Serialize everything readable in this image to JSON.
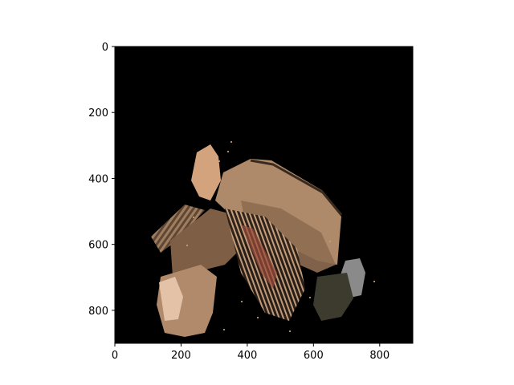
{
  "figure": {
    "background": "#ffffff",
    "image_background": "#000000",
    "content": "3D point-cloud render of a room/furniture scene on black",
    "palette": [
      "#c9a27e",
      "#a07a58",
      "#7d5d44",
      "#e6c3a8",
      "#5b4634",
      "#8f8f8f"
    ]
  },
  "axes": {
    "x_range": [
      0,
      900
    ],
    "y_range": [
      0,
      900
    ],
    "y_inverted": true,
    "x_ticks": [
      "0",
      "200",
      "400",
      "600",
      "800"
    ],
    "y_ticks": [
      "0",
      "200",
      "400",
      "600",
      "800"
    ]
  }
}
